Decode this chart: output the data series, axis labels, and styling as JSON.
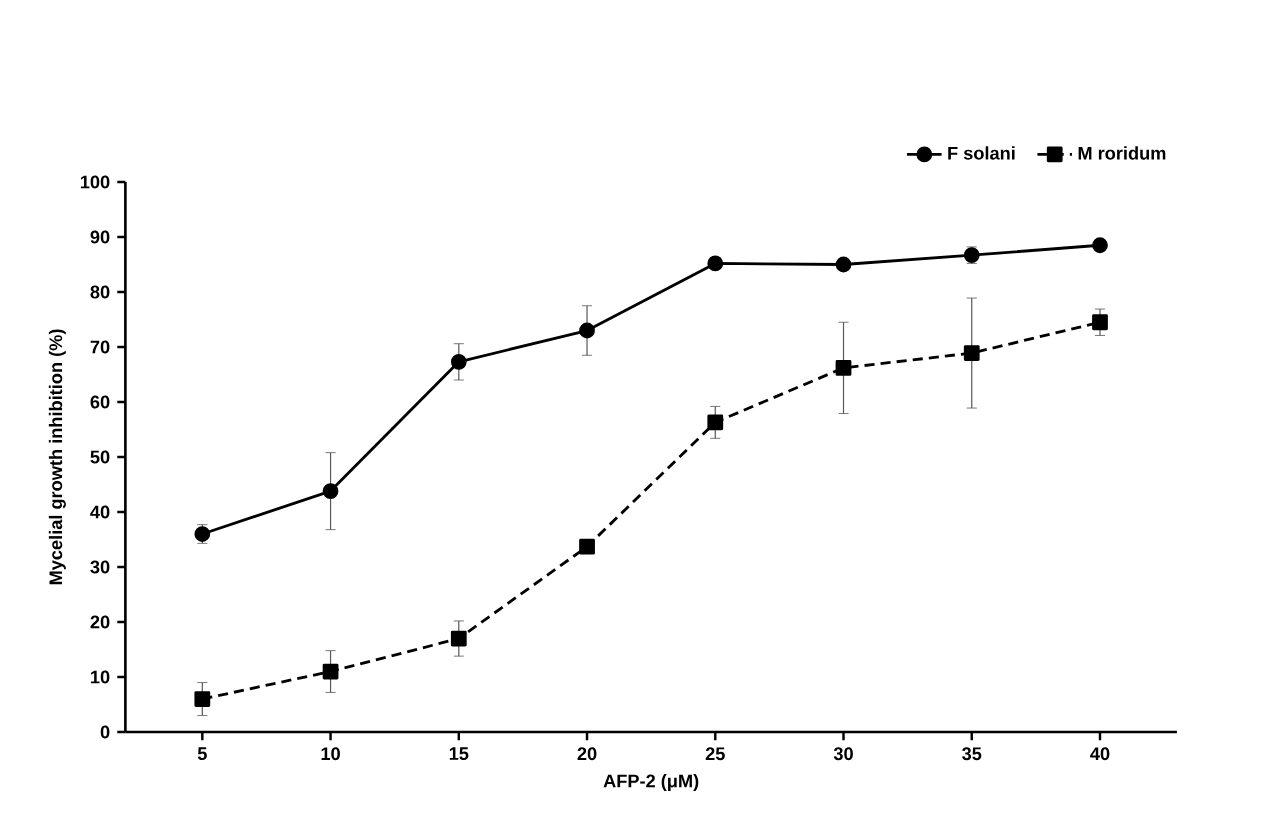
{
  "chart_data": {
    "type": "line",
    "xlabel": "AFP-2 (μM)",
    "ylabel": "Mycelial growth inhibition (%)",
    "categories": [
      "5",
      "10",
      "15",
      "20",
      "25",
      "30",
      "35",
      "40"
    ],
    "ylim": [
      0,
      100
    ],
    "yticks": [
      0,
      10,
      20,
      30,
      40,
      50,
      60,
      70,
      80,
      90,
      100
    ],
    "grid": false,
    "legend": "top right",
    "series": [
      {
        "name": "F solani",
        "color": "#000000",
        "marker": "circle",
        "line_style": "solid",
        "values": [
          36,
          43.8,
          67.3,
          73,
          85.2,
          85,
          86.7,
          88.5
        ],
        "errors": [
          1.7,
          7,
          3.3,
          4.5,
          1,
          1,
          1.5,
          1
        ]
      },
      {
        "name": "M roridum",
        "color": "#000000",
        "marker": "square",
        "line_style": "dashed",
        "values": [
          6,
          11,
          17,
          33.7,
          56.3,
          66.2,
          68.9,
          74.5
        ],
        "errors": [
          3,
          3.8,
          3.2,
          1,
          2.9,
          8.3,
          10,
          2.4
        ]
      }
    ]
  }
}
